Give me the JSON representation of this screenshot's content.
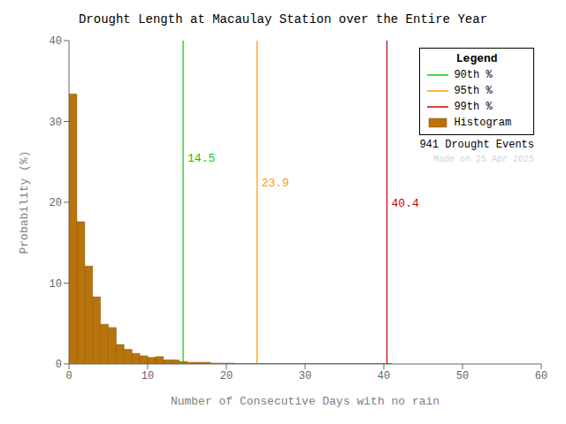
{
  "chart_data": {
    "type": "histogram",
    "title": "Drought Length at Macaulay Station over the Entire Year",
    "x_label": "Number of Consecutive Days with no rain",
    "y_label": "Probability (%)",
    "bins": [
      0,
      1,
      2,
      3,
      4,
      5,
      6,
      7,
      8,
      9,
      10,
      11,
      12,
      13,
      14,
      15,
      16,
      17,
      18,
      19,
      20,
      21,
      22,
      23,
      24,
      25,
      26,
      27,
      28,
      29,
      30,
      31,
      32,
      33,
      34,
      35,
      36,
      37,
      38,
      39,
      40,
      41
    ],
    "series": [
      {
        "name": "Histogram",
        "color": "#b8730a",
        "values": [
          33.4,
          17.6,
          12.1,
          8.3,
          4.9,
          4.5,
          2.4,
          1.8,
          1.3,
          1.0,
          0.8,
          0.9,
          0.5,
          0.5,
          0.3,
          0.2,
          0.2,
          0.2,
          0.1,
          0.1,
          0.1,
          0.05,
          0.05,
          0.05,
          0.05,
          0.05,
          0.05,
          0.05,
          0.05,
          0.05,
          0.05,
          0.05,
          0.05,
          0.05,
          0.05,
          0.05,
          0.05,
          0.05,
          0.05,
          0.05,
          0.05
        ]
      }
    ],
    "edge_color": "#8b5500",
    "reference_lines": [
      {
        "name": "90th %",
        "x": 14.5,
        "color": "#00cc00",
        "label_y": 25.5
      },
      {
        "name": "95th %",
        "x": 23.9,
        "color": "#ff9900",
        "label_y": 22.5
      },
      {
        "name": "99th %",
        "x": 40.4,
        "color": "#cc0000",
        "label_y": 20.0
      }
    ],
    "xlim": [
      0,
      60
    ],
    "ylim": [
      0,
      40
    ],
    "xticks": [
      0,
      10,
      20,
      30,
      40,
      50,
      60
    ],
    "yticks": [
      0,
      10,
      20,
      30,
      40
    ],
    "grid": false,
    "legend": "upper right",
    "legend_title": "Legend",
    "annotations": [
      {
        "text": "941 Drought Events"
      },
      {
        "text": "Made on 25 Apr 2025",
        "color": "lightgray"
      }
    ]
  }
}
